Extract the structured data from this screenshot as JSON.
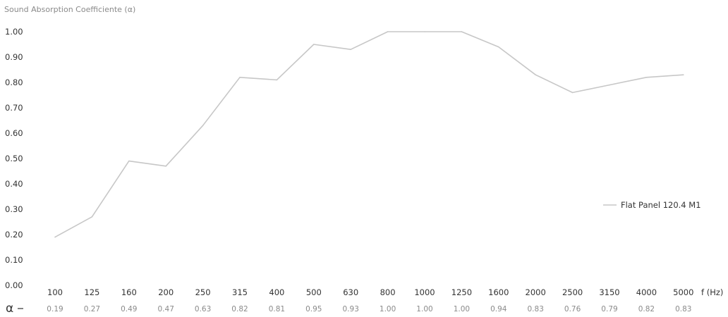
{
  "chart_data": {
    "type": "line",
    "ylabel": "Sound Absorption Coefficiente (α)",
    "xunit": "f (Hz)",
    "ylim": [
      0,
      1.0
    ],
    "yticks": [
      "0.00",
      "0.10",
      "0.20",
      "0.30",
      "0.40",
      "0.50",
      "0.60",
      "0.70",
      "0.80",
      "0.90",
      "1.00"
    ],
    "categories": [
      "100",
      "125",
      "160",
      "200",
      "250",
      "315",
      "400",
      "500",
      "630",
      "800",
      "1000",
      "1250",
      "1600",
      "2000",
      "2500",
      "3150",
      "4000",
      "5000"
    ],
    "series": [
      {
        "name": "Flat Panel 120.4 M1",
        "color": "#c7c7c7",
        "values": [
          0.19,
          0.27,
          0.49,
          0.47,
          0.63,
          0.82,
          0.81,
          0.95,
          0.93,
          1.0,
          1.0,
          1.0,
          0.94,
          0.83,
          0.76,
          0.79,
          0.82,
          0.83
        ]
      }
    ],
    "alpha_row": {
      "label": "α",
      "values": [
        "0.19",
        "0.27",
        "0.49",
        "0.47",
        "0.63",
        "0.82",
        "0.81",
        "0.95",
        "0.93",
        "1.00",
        "1.00",
        "1.00",
        "0.94",
        "0.83",
        "0.76",
        "0.79",
        "0.82",
        "0.83"
      ]
    },
    "grid": false,
    "legend_position": "right"
  }
}
